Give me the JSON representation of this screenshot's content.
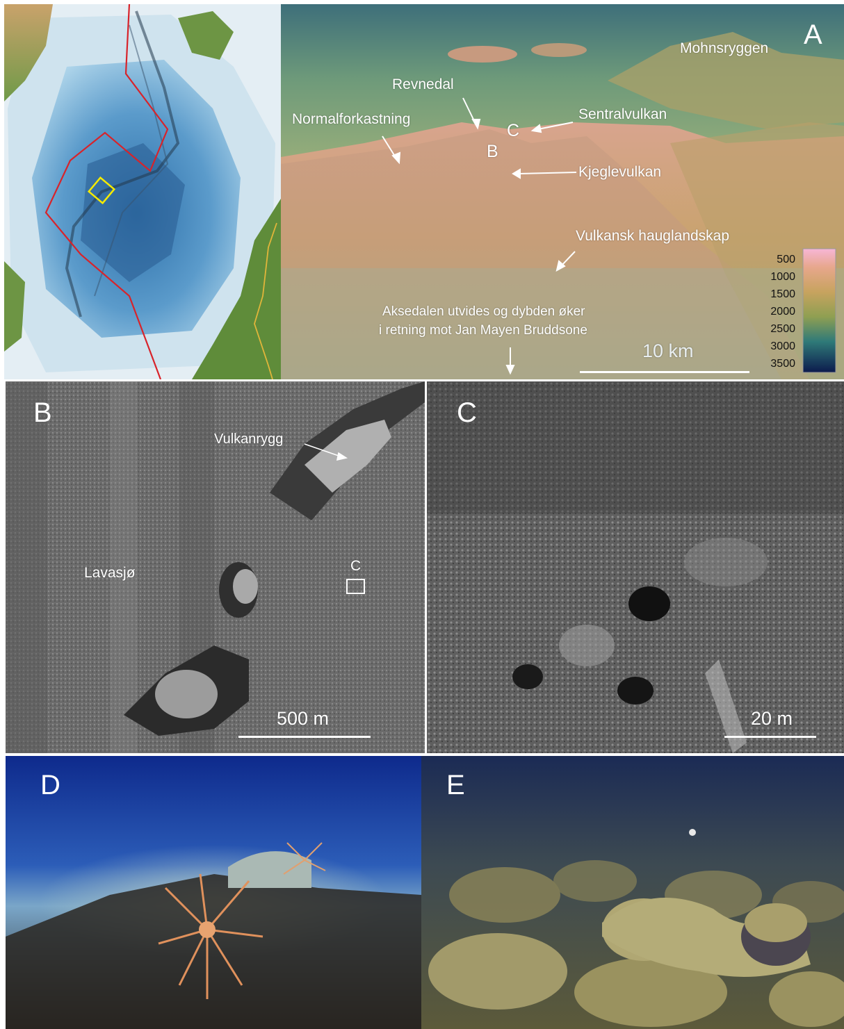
{
  "figure": {
    "panel_map": {
      "letter": ""
    },
    "panel_a": {
      "letter": "A",
      "labels": {
        "mohnsryggen": "Mohnsryggen",
        "revnedal": "Revnedal",
        "normalforkastning": "Normalforkastning",
        "sentralvulkan": "Sentralvulkan",
        "c_marker": "C",
        "b_marker": "B",
        "kjeglevulkan": "Kjeglevulkan",
        "vulkansk": "Vulkansk hauglandskap",
        "aksedal_line1": "Aksedalen utvides og dybden øker",
        "aksedal_line2": "i retning mot Jan Mayen Bruddsone"
      },
      "scale": "10 km",
      "depth_legend": [
        "500",
        "1000",
        "1500",
        "2000",
        "2500",
        "3000",
        "3500"
      ]
    },
    "panel_b": {
      "letter": "B",
      "vulkanrygg": "Vulkanrygg",
      "lavasjo": "Lavasjø",
      "c_box": "C",
      "scale": "500 m"
    },
    "panel_c": {
      "letter": "C",
      "scale": "20 m"
    },
    "panel_d": {
      "letter": "D"
    },
    "panel_e": {
      "letter": "E"
    }
  }
}
